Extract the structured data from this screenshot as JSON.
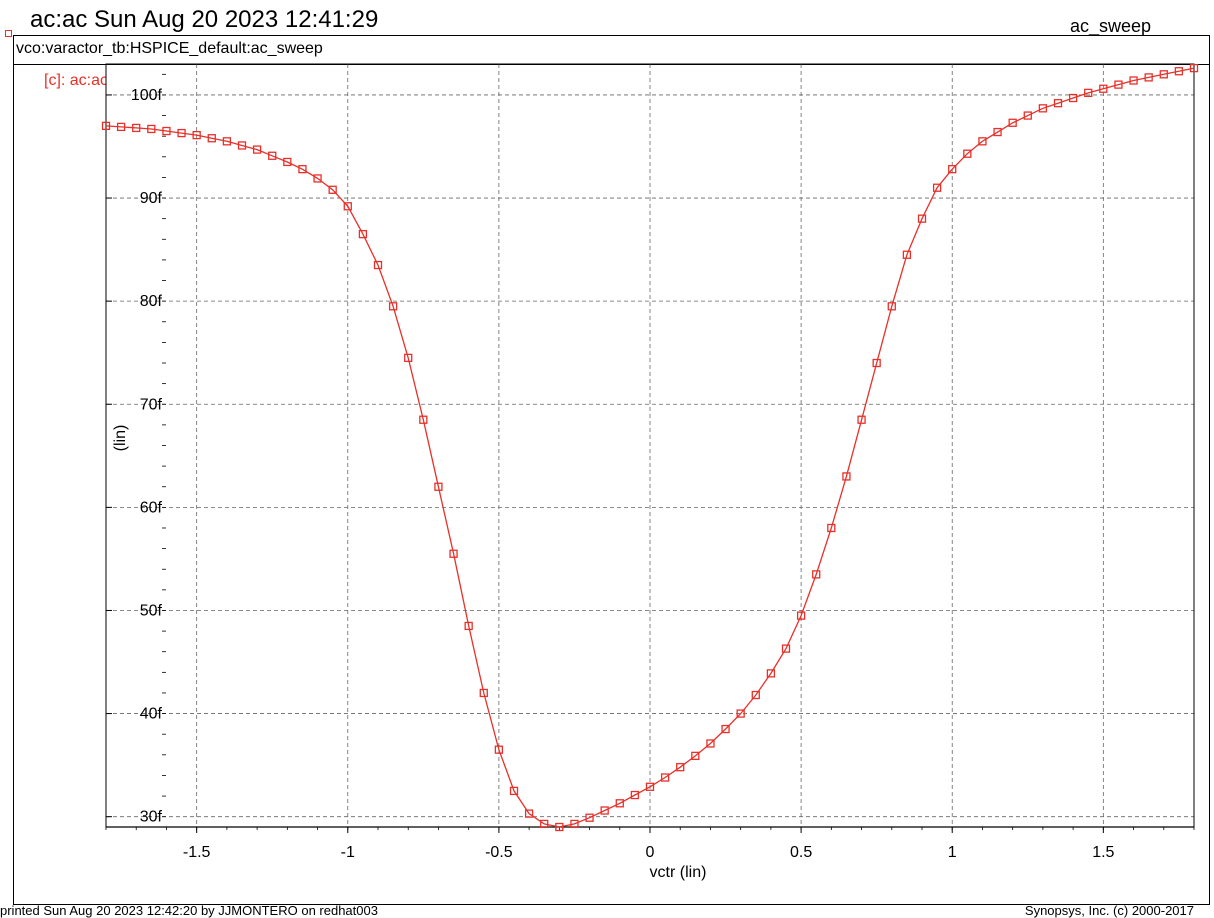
{
  "header": {
    "title": "ac:ac Sun Aug 20 2023 12:41:29",
    "plot_name": "ac_sweep",
    "subtitle": "vco:varactor_tb:HSPICE_default:ac_sweep"
  },
  "legend": {
    "label": "[c]: ac:ac"
  },
  "footer": {
    "printed": "printed Sun Aug 20 2023 12:42:20 by JJMONTERO on redhat003",
    "copyright": "Synopsys, Inc. (c) 2000-2017"
  },
  "colors": {
    "series": "#e8302a",
    "grid": "#666666",
    "axis": "#000000"
  },
  "chart_data": {
    "type": "line",
    "xlabel": "vctr (lin)",
    "ylabel": "(lin)",
    "xlim": [
      -1.8,
      1.8
    ],
    "ylim": [
      29,
      103
    ],
    "grid": true,
    "x_ticks": [
      -1.5,
      -1,
      -0.5,
      0,
      0.5,
      1,
      1.5
    ],
    "x_tick_labels": [
      "-1.5",
      "-1",
      "-0.5",
      "0",
      "0.5",
      "1",
      "1.5"
    ],
    "y_ticks": [
      30,
      40,
      50,
      60,
      70,
      80,
      90,
      100
    ],
    "y_tick_labels": [
      "30f",
      "40f",
      "50f",
      "60f",
      "70f",
      "80f",
      "90f",
      "100f"
    ],
    "series": [
      {
        "marker": "square",
        "x": [
          -1.8,
          -1.75,
          -1.7,
          -1.65,
          -1.6,
          -1.55,
          -1.5,
          -1.45,
          -1.4,
          -1.35,
          -1.3,
          -1.25,
          -1.2,
          -1.15,
          -1.1,
          -1.05,
          -1.0,
          -0.95,
          -0.9,
          -0.85,
          -0.8,
          -0.75,
          -0.7,
          -0.65,
          -0.6,
          -0.55,
          -0.5,
          -0.45,
          -0.4,
          -0.35,
          -0.3,
          -0.25,
          -0.2,
          -0.15,
          -0.1,
          -0.05,
          0.0,
          0.05,
          0.1,
          0.15,
          0.2,
          0.25,
          0.3,
          0.35,
          0.4,
          0.45,
          0.5,
          0.55,
          0.6,
          0.65,
          0.7,
          0.75,
          0.8,
          0.85,
          0.9,
          0.95,
          1.0,
          1.05,
          1.1,
          1.15,
          1.2,
          1.25,
          1.3,
          1.35,
          1.4,
          1.45,
          1.5,
          1.55,
          1.6,
          1.65,
          1.7,
          1.75,
          1.8
        ],
        "y": [
          97.0,
          96.9,
          96.8,
          96.7,
          96.5,
          96.3,
          96.1,
          95.8,
          95.5,
          95.1,
          94.7,
          94.1,
          93.5,
          92.8,
          91.9,
          90.8,
          89.2,
          86.5,
          83.5,
          79.5,
          74.5,
          68.5,
          62.0,
          55.5,
          48.5,
          42.0,
          36.5,
          32.5,
          30.3,
          29.3,
          29.0,
          29.3,
          29.9,
          30.6,
          31.3,
          32.1,
          32.9,
          33.8,
          34.8,
          35.9,
          37.1,
          38.5,
          40.0,
          41.8,
          43.9,
          46.3,
          49.5,
          53.5,
          58.0,
          63.0,
          68.5,
          74.0,
          79.5,
          84.5,
          88.0,
          91.0,
          92.8,
          94.3,
          95.5,
          96.4,
          97.3,
          98.0,
          98.7,
          99.2,
          99.7,
          100.2,
          100.6,
          101.0,
          101.4,
          101.7,
          102.0,
          102.3,
          102.6
        ]
      }
    ]
  }
}
